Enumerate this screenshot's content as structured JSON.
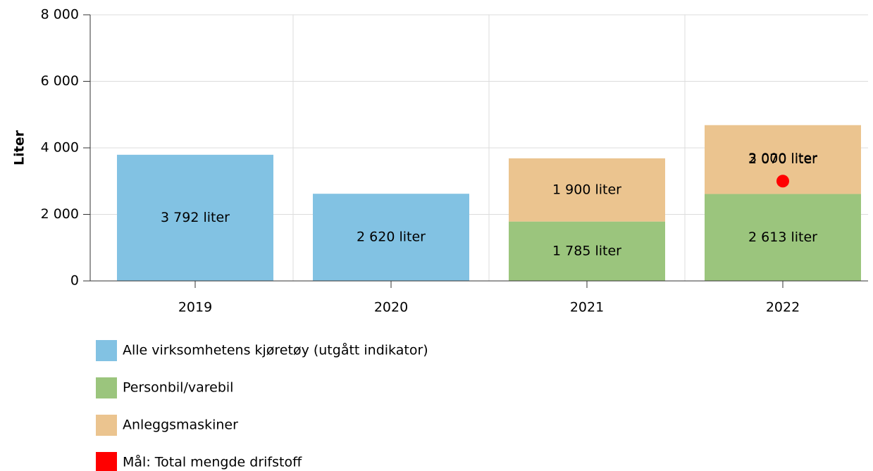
{
  "chart_data": {
    "type": "bar",
    "stacked": true,
    "ylabel": "Liter",
    "categories": [
      "2019",
      "2020",
      "2021",
      "2022"
    ],
    "series": [
      {
        "name": "Alle virksomhetens kjøretøy (utgått indikator)",
        "color": "#82c2e3",
        "values": [
          3792,
          2620,
          null,
          null
        ],
        "value_labels": [
          "3 792 liter",
          "2 620 liter",
          null,
          null
        ]
      },
      {
        "name": "Personbil/varebil",
        "color": "#9bc57d",
        "values": [
          null,
          null,
          1785,
          2613
        ],
        "value_labels": [
          null,
          null,
          "1 785 liter",
          "2 613 liter"
        ]
      },
      {
        "name": "Anleggsmaskiner",
        "color": "#ebc48f",
        "values": [
          null,
          null,
          1900,
          2070
        ],
        "value_labels": [
          null,
          null,
          "1 900 liter",
          "2 070 liter"
        ]
      },
      {
        "name": "Mål: Total mengde drifstoff",
        "color": "#ff0000",
        "marker": "circle",
        "values": [
          null,
          null,
          null,
          3000
        ],
        "value_labels": [
          null,
          null,
          null,
          "3 000 liter"
        ]
      }
    ],
    "ylim": [
      0,
      8000
    ],
    "yticks": [
      0,
      {
        "value": 2000,
        "label": "2 000"
      },
      {
        "value": 4000,
        "label": "4 000"
      },
      {
        "value": 6000,
        "label": "6 000"
      },
      {
        "value": 8000,
        "label": "8 000"
      }
    ],
    "grid": true
  }
}
